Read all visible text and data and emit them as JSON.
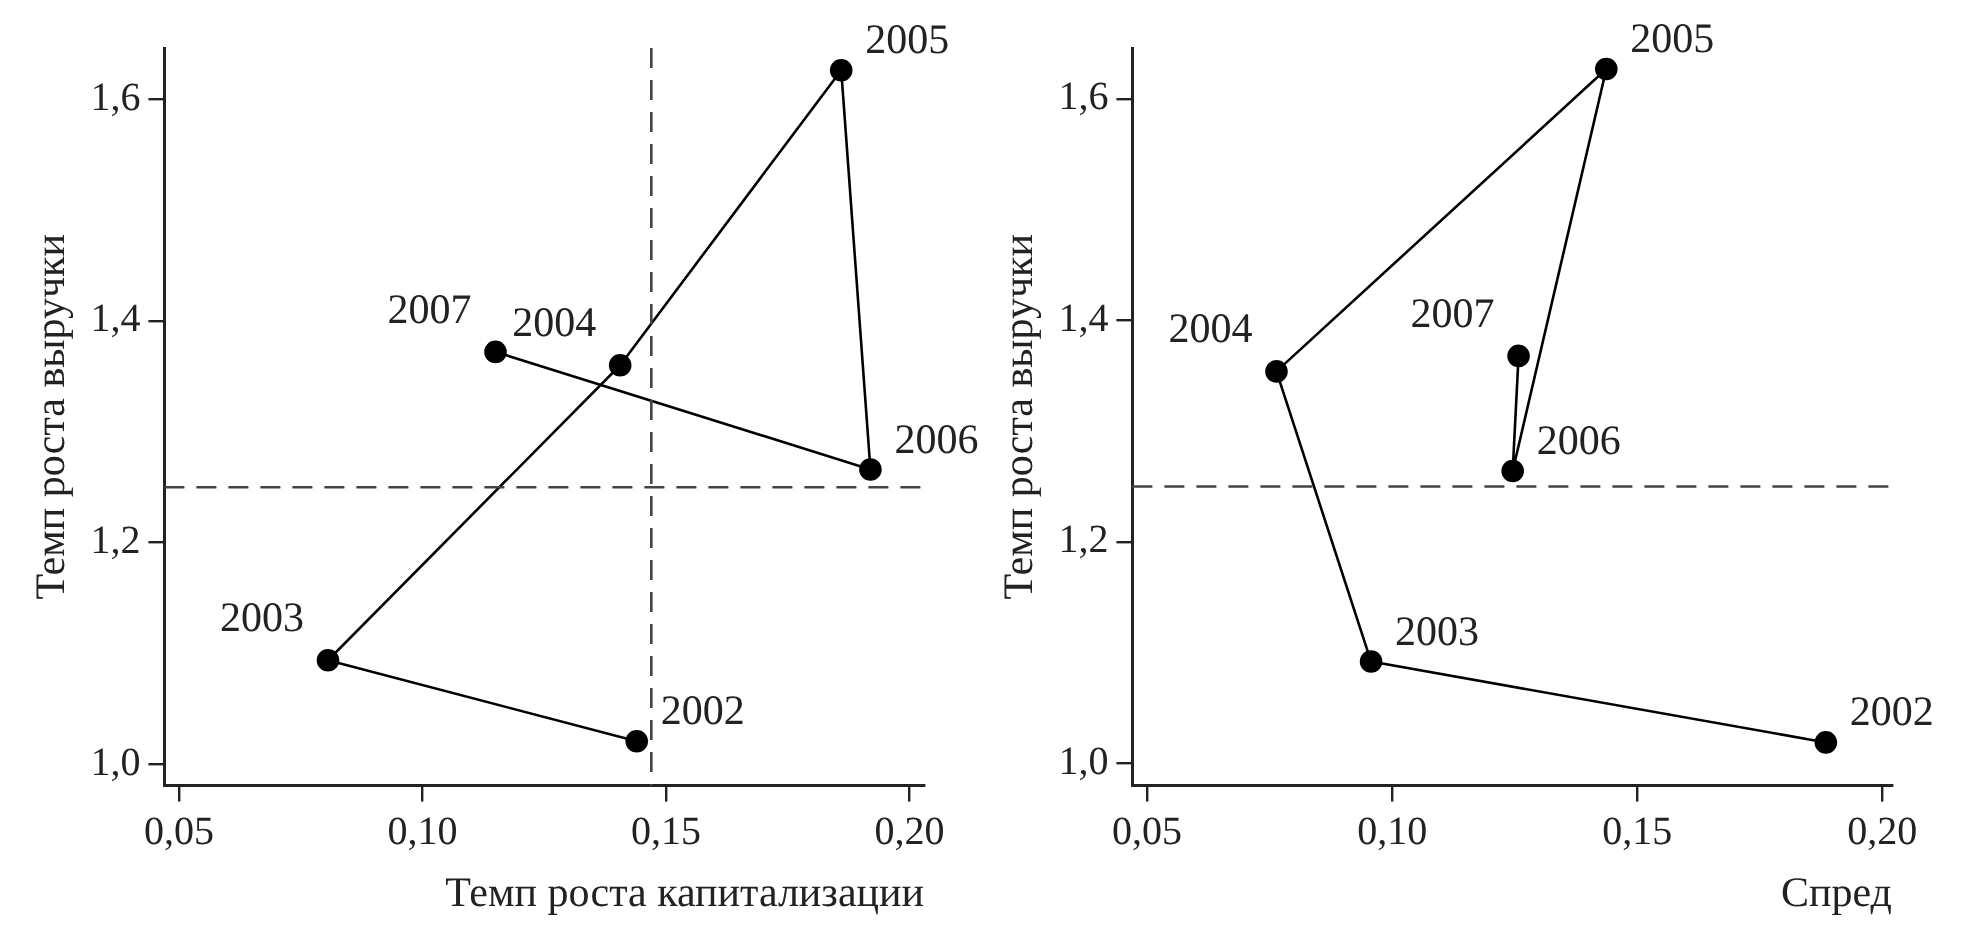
{
  "chart_data": [
    {
      "type": "line",
      "xlabel": "Темп роста капитализации",
      "ylabel": "Темп роста выручки",
      "marker": "circle",
      "line_style": "solid",
      "grid": false,
      "legend": false,
      "series": [
        {
          "color": "#000000",
          "x": [
            0.144,
            0.0806,
            0.1406,
            0.186,
            0.192,
            0.115
          ],
          "values": [
            1.021,
            1.094,
            1.36,
            1.626,
            1.266,
            1.372
          ]
        }
      ],
      "xlim": [
        0.047,
        0.203
      ],
      "ylim": [
        0.981,
        1.646
      ],
      "xticks": [
        {
          "value": 0.05,
          "label": "0,05"
        },
        {
          "value": 0.1,
          "label": "0,10"
        },
        {
          "value": 0.15,
          "label": "0,15"
        },
        {
          "value": 0.2,
          "label": "0,20"
        }
      ],
      "yticks": [
        {
          "value": 1.0,
          "label": "1,0"
        },
        {
          "value": 1.2,
          "label": "1,2"
        },
        {
          "value": 1.4,
          "label": "1,4"
        },
        {
          "value": 1.6,
          "label": "1,6"
        }
      ],
      "ref_lines": [
        {
          "axis": "x",
          "value": 0.147,
          "color": "#444444",
          "line_style": "dashed"
        },
        {
          "axis": "y",
          "value": 1.25,
          "color": "#444444",
          "line_style": "dashed"
        }
      ],
      "annotations": [
        {
          "text": "2002",
          "x": 0.144,
          "y": 1.021
        },
        {
          "text": "2003",
          "x": 0.0806,
          "y": 1.094
        },
        {
          "text": "2004",
          "x": 0.1406,
          "y": 1.36
        },
        {
          "text": "2005",
          "x": 0.186,
          "y": 1.626
        },
        {
          "text": "2006",
          "x": 0.192,
          "y": 1.266
        },
        {
          "text": "2007",
          "x": 0.115,
          "y": 1.372
        }
      ]
    },
    {
      "type": "line",
      "xlabel": "Спред",
      "ylabel": "Темп роста выручки",
      "marker": "circle",
      "line_style": "solid",
      "grid": false,
      "legend": false,
      "series": [
        {
          "color": "#000000",
          "x": [
            0.1885,
            0.0957,
            0.0764,
            0.1437,
            0.1246,
            0.1258
          ],
          "values": [
            1.019,
            1.092,
            1.354,
            1.627,
            1.264,
            1.368
          ]
        }
      ],
      "xlim": [
        0.047,
        0.202
      ],
      "ylim": [
        0.98,
        1.646
      ],
      "xticks": [
        {
          "value": 0.05,
          "label": "0,05"
        },
        {
          "value": 0.1,
          "label": "0,10"
        },
        {
          "value": 0.15,
          "label": "0,15"
        },
        {
          "value": 0.2,
          "label": "0,20"
        }
      ],
      "yticks": [
        {
          "value": 1.0,
          "label": "1,0"
        },
        {
          "value": 1.2,
          "label": "1,2"
        },
        {
          "value": 1.4,
          "label": "1,4"
        },
        {
          "value": 1.6,
          "label": "1,6"
        }
      ],
      "ref_lines": [
        {
          "axis": "y",
          "value": 1.25,
          "color": "#444444",
          "line_style": "dashed"
        }
      ],
      "annotations": [
        {
          "text": "2002",
          "x": 0.1885,
          "y": 1.019
        },
        {
          "text": "2003",
          "x": 0.0957,
          "y": 1.092
        },
        {
          "text": "2004",
          "x": 0.0764,
          "y": 1.354
        },
        {
          "text": "2005",
          "x": 0.1437,
          "y": 1.627
        },
        {
          "text": "2006",
          "x": 0.1246,
          "y": 1.264
        },
        {
          "text": "2007",
          "x": 0.1258,
          "y": 1.368
        }
      ]
    }
  ]
}
